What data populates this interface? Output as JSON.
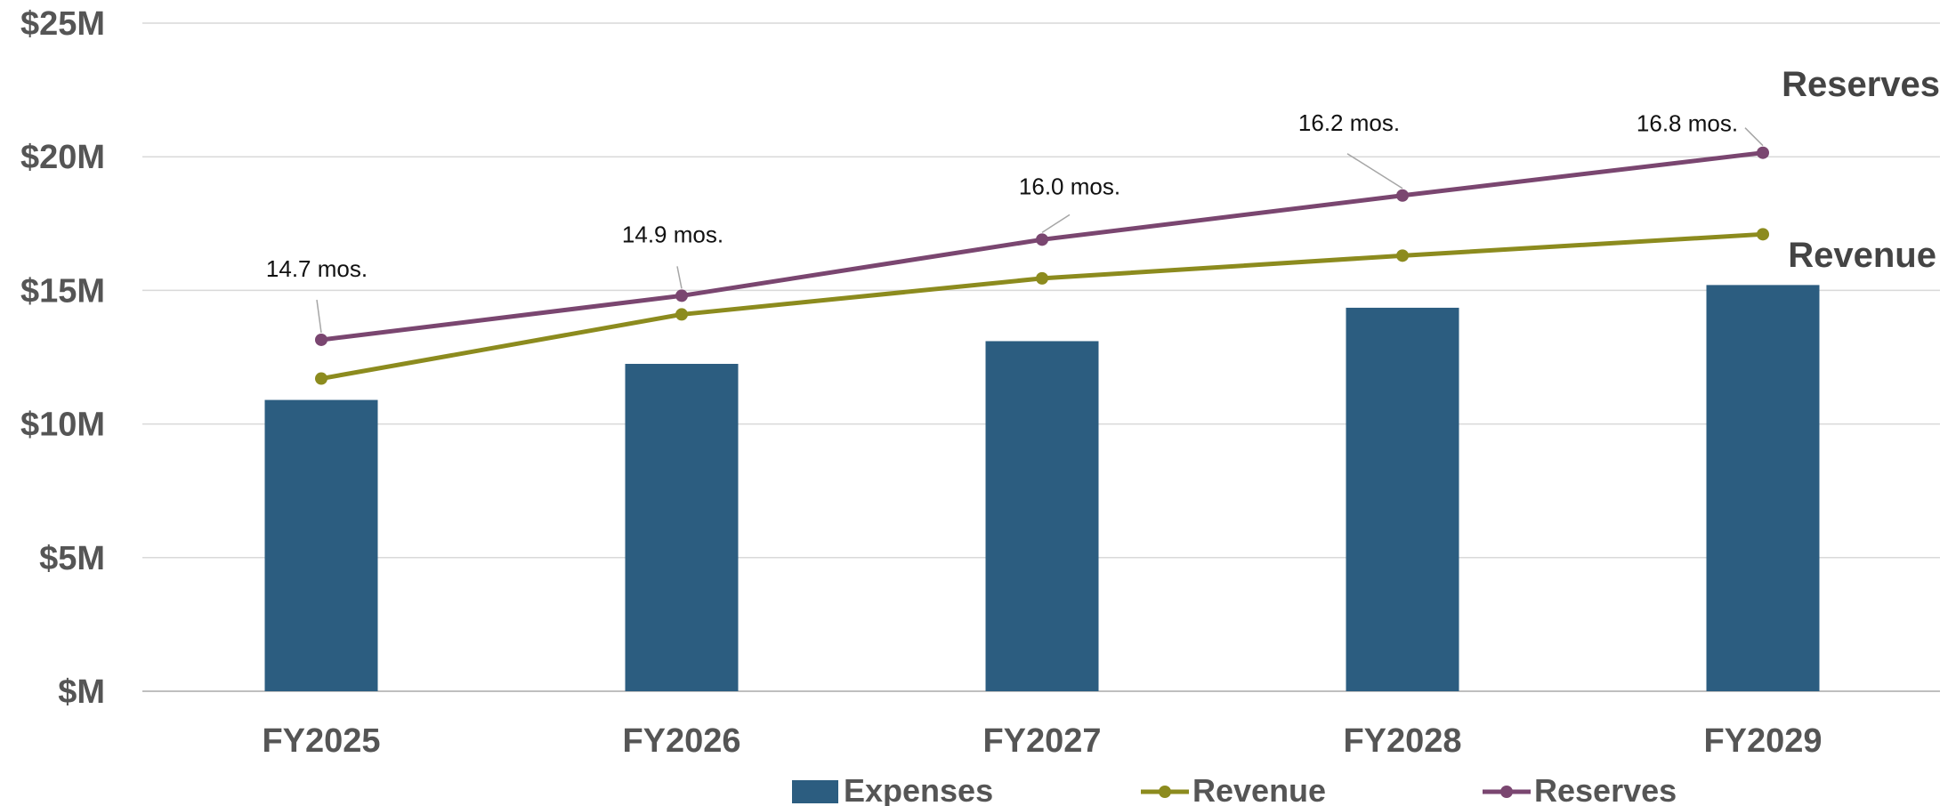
{
  "chart_data": {
    "type": "bar",
    "categories": [
      "FY2025",
      "FY2026",
      "FY2027",
      "FY2028",
      "FY2029"
    ],
    "ylim": [
      0,
      25
    ],
    "y_ticks": [
      0,
      5,
      10,
      15,
      20,
      25
    ],
    "y_tick_labels": [
      "$M",
      "$5M",
      "$10M",
      "$15M",
      "$20M",
      "$25M"
    ],
    "grid": true,
    "legend_position": "bottom",
    "series": [
      {
        "name": "Expenses",
        "type": "bar",
        "color": "#2c5d80",
        "values": [
          10.9,
          12.25,
          13.1,
          14.35,
          15.2
        ]
      },
      {
        "name": "Revenue",
        "type": "line",
        "color": "#8c8b1e",
        "values": [
          11.7,
          14.1,
          15.45,
          16.3,
          17.1
        ]
      },
      {
        "name": "Reserves",
        "type": "line",
        "color": "#7a4670",
        "values": [
          13.15,
          14.8,
          16.9,
          18.55,
          20.15
        ],
        "data_labels": [
          "14.7 mos.",
          "14.9 mos.",
          "16.0 mos.",
          "16.2 mos.",
          "16.8 mos."
        ]
      }
    ],
    "series_end_labels": [
      "Reserves",
      "Revenue"
    ],
    "legend": [
      "Expenses",
      "Revenue",
      "Reserves"
    ]
  }
}
